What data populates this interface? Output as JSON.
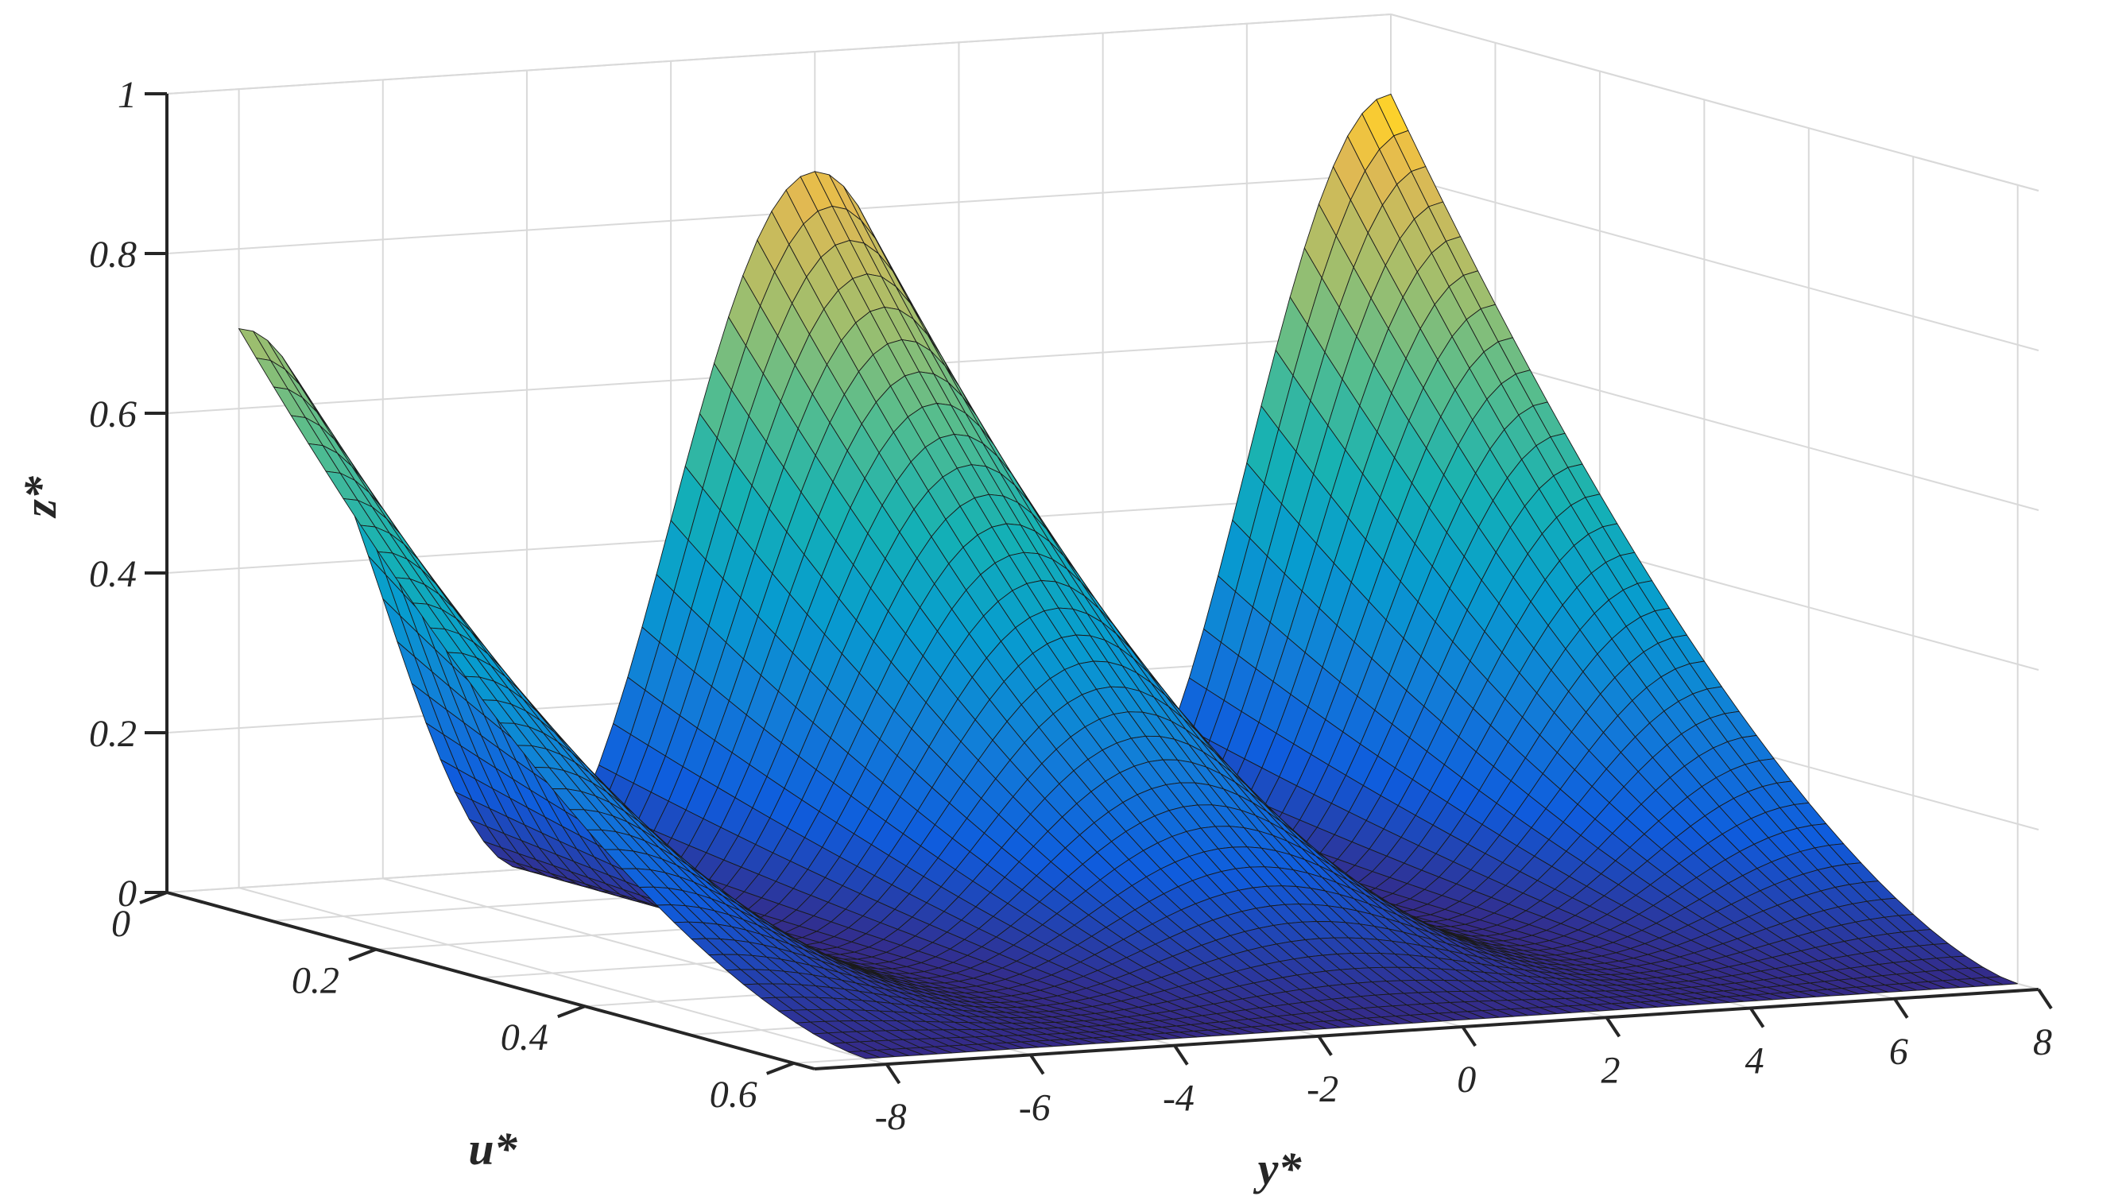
{
  "chart_data": {
    "type": "surface",
    "title": "",
    "xlabel": "y*",
    "ylabel": "u*",
    "zlabel": "z*",
    "x_ticks": [
      "-8",
      "-6",
      "-4",
      "-2",
      "0",
      "2",
      "4",
      "6",
      "8"
    ],
    "y_ticks": [
      "0",
      "0.2",
      "0.4",
      "0.6"
    ],
    "z_ticks": [
      "0",
      "0.2",
      "0.4",
      "0.6",
      "0.8",
      "1"
    ],
    "xlim": [
      -9,
      8
    ],
    "ylim": [
      0,
      0.62
    ],
    "zlim": [
      0,
      1
    ],
    "grid": true,
    "colormap": "parula",
    "surface": {
      "x_range": [
        -8,
        8
      ],
      "u_range": [
        0,
        0.6
      ],
      "edge_z_at_u0": [
        0.7,
        0.0,
        0.85,
        0.0,
        0.9
      ],
      "edge_x_positions": [
        -8,
        -4,
        0,
        4,
        8
      ],
      "z_max_at_u0": 0.93,
      "z_min": 0.0
    }
  }
}
